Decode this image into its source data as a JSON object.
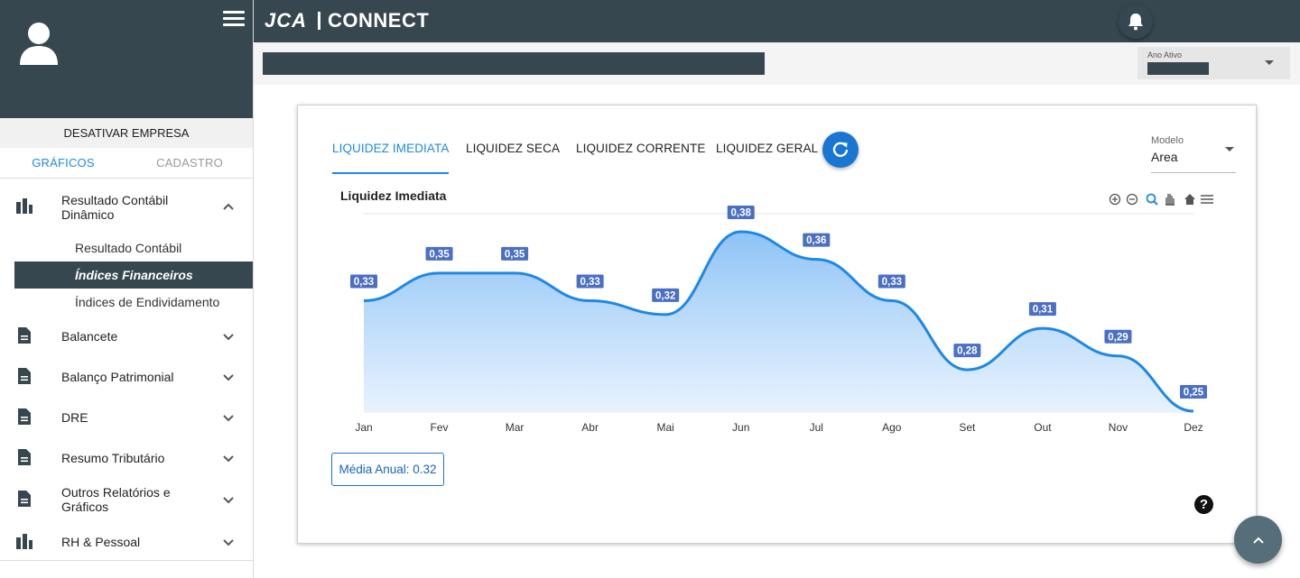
{
  "app": {
    "logo_left": "JCA",
    "logo_right": "CONNECT"
  },
  "sidebar": {
    "deactivate_label": "DESATIVAR EMPRESA",
    "tabs": [
      "GRÁFICOS",
      "CADASTRO"
    ],
    "menu": [
      {
        "label": "Resultado Contábil Dinâmico",
        "icon": "bar-chart-icon",
        "expanded": true,
        "children": [
          "Resultado Contábil",
          "Índices Financeiros",
          "Índices de Endividamento"
        ]
      },
      {
        "label": "Balancete",
        "icon": "document-icon"
      },
      {
        "label": "Balanço Patrimonial",
        "icon": "document-icon"
      },
      {
        "label": "DRE",
        "icon": "document-icon"
      },
      {
        "label": "Resumo Tributário",
        "icon": "document-icon"
      },
      {
        "label": "Outros Relatórios e Gráficos",
        "icon": "document-icon"
      },
      {
        "label": "RH & Pessoal",
        "icon": "bar-chart-icon"
      }
    ]
  },
  "header": {
    "year_label": "Ano Ativo"
  },
  "card": {
    "tabs": [
      "LIQUIDEZ IMEDIATA",
      "LIQUIDEZ SECA",
      "LIQUIDEZ CORRENTE",
      "LIQUIDEZ GERAL"
    ],
    "model_label": "Modelo",
    "model_value": "Area",
    "average_label": "Média Anual: 0.32"
  },
  "colors": {
    "accent": "#1e88e5",
    "dark": "#37474f",
    "series": "#1e88e5",
    "label_bg": "#4a6fc4"
  },
  "chart_data": {
    "type": "area",
    "title": "Liquidez Imediata",
    "categories": [
      "Jan",
      "Fev",
      "Mar",
      "Abr",
      "Mai",
      "Jun",
      "Jul",
      "Ago",
      "Set",
      "Out",
      "Nov",
      "Dez"
    ],
    "series": [
      {
        "values": [
          0.33,
          0.35,
          0.35,
          0.33,
          0.32,
          0.38,
          0.36,
          0.33,
          0.28,
          0.31,
          0.29,
          0.25
        ],
        "labels": [
          "0,33",
          "0,35",
          "0,35",
          "0,33",
          "0,32",
          "0,38",
          "0,36",
          "0,33",
          "0,28",
          "0,31",
          "0,29",
          "0,25"
        ]
      }
    ],
    "ylim": [
      0.25,
      0.38
    ],
    "grid": "horizontal",
    "toolbar_icons": [
      "zoom-in-icon",
      "zoom-out-icon",
      "selection-zoom-icon",
      "pan-icon",
      "reset-home-icon",
      "menu-icon"
    ]
  }
}
